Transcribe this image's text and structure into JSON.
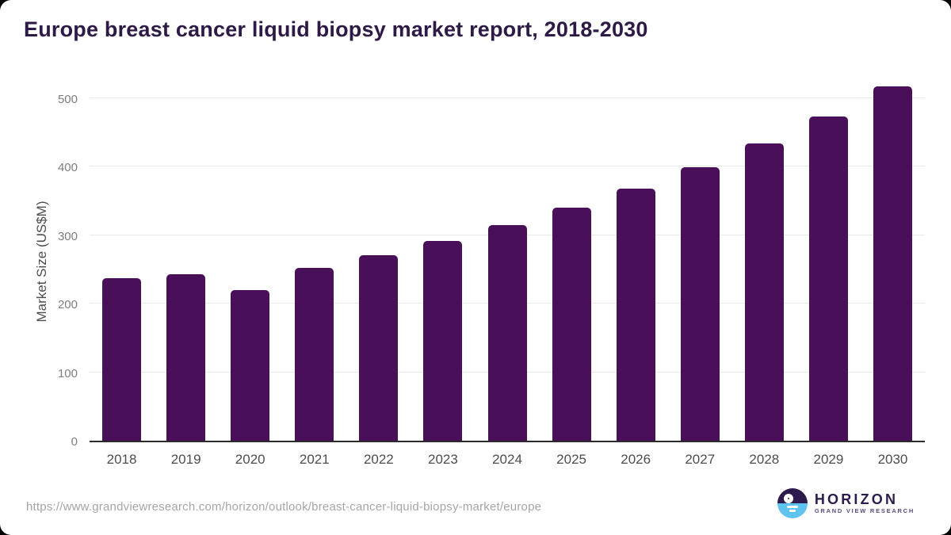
{
  "page": {
    "title": "Europe breast cancer liquid biopsy market report, 2018-2030",
    "source_url": "https://www.grandviewresearch.com/horizon/outlook/breast-cancer-liquid-biopsy-market/europe"
  },
  "logo": {
    "name": "HORIZON",
    "subtitle": "GRAND VIEW RESEARCH",
    "circle_top_color": "#2d1b4e",
    "circle_bottom_color": "#5fc3f0"
  },
  "chart_data": {
    "type": "bar",
    "title": "Europe breast cancer liquid biopsy market report, 2018-2030",
    "categories": [
      "2018",
      "2019",
      "2020",
      "2021",
      "2022",
      "2023",
      "2024",
      "2025",
      "2026",
      "2027",
      "2028",
      "2029",
      "2030"
    ],
    "values": [
      237,
      243,
      220,
      252,
      271,
      292,
      315,
      340,
      368,
      399,
      434,
      473,
      517
    ],
    "xlabel": "",
    "ylabel": "Market Size (US$M)",
    "ylim": [
      0,
      530
    ],
    "yticks": [
      0,
      100,
      200,
      300,
      400,
      500
    ],
    "grid": true,
    "legend": false,
    "bar_color": "#491059",
    "gridline_color": "#e9e9e9",
    "axis_line_color": "#2b2b2b"
  }
}
